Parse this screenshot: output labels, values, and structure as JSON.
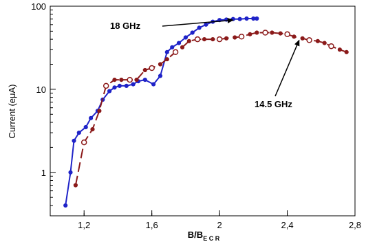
{
  "chart_data": {
    "type": "line",
    "xlabel_main": "B/B",
    "xlabel_sub": "E C R",
    "ylabel": "Current (eμA)",
    "xlim": [
      1.0,
      2.8
    ],
    "ylim": [
      0.3,
      100
    ],
    "yscale": "log",
    "xticks": [
      1.2,
      1.6,
      2.0,
      2.4,
      2.8
    ],
    "xtick_labels": [
      "1,2",
      "1,6",
      "2",
      "2,4",
      "2,8"
    ],
    "yticks": [
      1,
      10,
      100
    ],
    "ytick_labels": [
      "1",
      "10",
      "100"
    ],
    "series": [
      {
        "name": "18  GHz",
        "color": "#1f23c8",
        "style": "solid",
        "marker": "filled-circle",
        "x": [
          1.09,
          1.12,
          1.14,
          1.17,
          1.21,
          1.24,
          1.28,
          1.31,
          1.35,
          1.38,
          1.41,
          1.45,
          1.49,
          1.52,
          1.56,
          1.61,
          1.65,
          1.69,
          1.72,
          1.76,
          1.8,
          1.84,
          1.88,
          1.92,
          1.96,
          2.0,
          2.04,
          2.08,
          2.12,
          2.16,
          2.2,
          2.22
        ],
        "y": [
          0.4,
          1.0,
          2.4,
          3.0,
          3.5,
          4.5,
          5.5,
          7.5,
          9.5,
          10.5,
          11.0,
          11.0,
          11.5,
          12.5,
          13.0,
          11.5,
          14.5,
          28,
          32,
          36,
          42,
          48,
          55,
          60,
          65,
          68,
          69,
          70,
          70,
          71,
          71,
          71
        ]
      },
      {
        "name": "14.5  GHz",
        "color": "#8b1a1a",
        "style": "dashed",
        "marker": "open-circle",
        "x": [
          1.15,
          1.2,
          1.25,
          1.29,
          1.33,
          1.38,
          1.42,
          1.47,
          1.51,
          1.56,
          1.6,
          1.65,
          1.69,
          1.74,
          1.78,
          1.82,
          1.87,
          1.91,
          1.96,
          2.0,
          2.04,
          2.09,
          2.13,
          2.18,
          2.22,
          2.27,
          2.31,
          2.36,
          2.4,
          2.44,
          2.49,
          2.53,
          2.58,
          2.62,
          2.66,
          2.71,
          2.75
        ],
        "y": [
          0.7,
          2.3,
          3.3,
          5.5,
          11.0,
          13.0,
          13.0,
          13.0,
          13.0,
          17.0,
          18.0,
          20.0,
          23.0,
          28.0,
          32.0,
          38.0,
          40.0,
          40.0,
          40.0,
          40.0,
          41.0,
          42.0,
          43.0,
          46.0,
          48.0,
          48.0,
          48.0,
          47.0,
          46.0,
          43.0,
          41.0,
          39.0,
          38.0,
          36.0,
          33.0,
          30.0,
          28.0
        ]
      }
    ],
    "annotations": [
      {
        "text": "18  GHz",
        "arrow_to": [
          2.08,
          68
        ]
      },
      {
        "text": "14.5  GHz",
        "arrow_to": [
          2.47,
          42
        ]
      }
    ]
  }
}
